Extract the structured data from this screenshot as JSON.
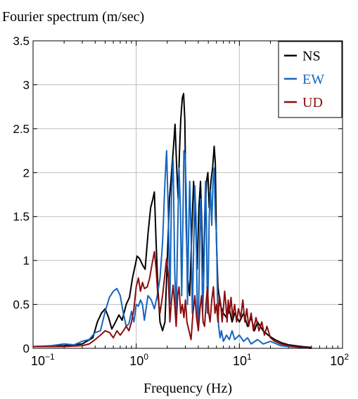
{
  "chart_data": {
    "type": "line",
    "ylabel": "Fourier spectrum (m/sec)",
    "xlabel": "Frequency (Hz)",
    "x_scale": "log",
    "xlim": [
      0.1,
      100
    ],
    "ylim": [
      0,
      3.5
    ],
    "grid": true,
    "legend_position": "top-right",
    "x_ticks": [
      {
        "value": 0.1,
        "base": "10",
        "exp": "−1"
      },
      {
        "value": 1,
        "base": "10",
        "exp": "0"
      },
      {
        "value": 10,
        "base": "10",
        "exp": "1"
      },
      {
        "value": 100,
        "base": "10",
        "exp": "2"
      }
    ],
    "y_ticks": [
      {
        "value": 0,
        "label": "0"
      },
      {
        "value": 0.5,
        "label": "0.5"
      },
      {
        "value": 1,
        "label": "1"
      },
      {
        "value": 1.5,
        "label": "1.5"
      },
      {
        "value": 2,
        "label": "2"
      },
      {
        "value": 2.5,
        "label": "2.5"
      },
      {
        "value": 3,
        "label": "3"
      },
      {
        "value": 3.5,
        "label": "3.5"
      }
    ],
    "series": [
      {
        "name": "NS",
        "color": "#000000",
        "points": [
          [
            0.1,
            0.02
          ],
          [
            0.2,
            0.03
          ],
          [
            0.3,
            0.05
          ],
          [
            0.38,
            0.12
          ],
          [
            0.42,
            0.3
          ],
          [
            0.46,
            0.4
          ],
          [
            0.5,
            0.45
          ],
          [
            0.54,
            0.35
          ],
          [
            0.58,
            0.22
          ],
          [
            0.63,
            0.3
          ],
          [
            0.68,
            0.38
          ],
          [
            0.73,
            0.32
          ],
          [
            0.8,
            0.5
          ],
          [
            0.86,
            0.58
          ],
          [
            0.92,
            0.8
          ],
          [
            0.98,
            0.95
          ],
          [
            1.02,
            1.05
          ],
          [
            1.08,
            1.02
          ],
          [
            1.15,
            0.95
          ],
          [
            1.22,
            0.9
          ],
          [
            1.3,
            1.3
          ],
          [
            1.38,
            1.6
          ],
          [
            1.45,
            1.7
          ],
          [
            1.5,
            1.78
          ],
          [
            1.56,
            1.2
          ],
          [
            1.62,
            0.7
          ],
          [
            1.7,
            0.3
          ],
          [
            1.8,
            0.2
          ],
          [
            1.9,
            0.3
          ],
          [
            2.0,
            1.0
          ],
          [
            2.1,
            1.7
          ],
          [
            2.2,
            2.0
          ],
          [
            2.3,
            2.3
          ],
          [
            2.38,
            2.55
          ],
          [
            2.46,
            2.1
          ],
          [
            2.55,
            1.7
          ],
          [
            2.62,
            2.2
          ],
          [
            2.7,
            2.6
          ],
          [
            2.8,
            2.85
          ],
          [
            2.88,
            2.9
          ],
          [
            2.96,
            2.6
          ],
          [
            3.05,
            1.4
          ],
          [
            3.15,
            0.8
          ],
          [
            3.3,
            0.6
          ],
          [
            3.45,
            1.3
          ],
          [
            3.6,
            1.9
          ],
          [
            3.75,
            1.5
          ],
          [
            3.9,
            0.9
          ],
          [
            4.05,
            1.6
          ],
          [
            4.2,
            1.9
          ],
          [
            4.35,
            1.3
          ],
          [
            4.5,
            0.8
          ],
          [
            4.65,
            1.5
          ],
          [
            4.8,
            1.9
          ],
          [
            4.95,
            2.0
          ],
          [
            5.1,
            1.6
          ],
          [
            5.3,
            1.9
          ],
          [
            5.5,
            2.05
          ],
          [
            5.7,
            2.3
          ],
          [
            5.85,
            2.1
          ],
          [
            6.0,
            1.2
          ],
          [
            6.2,
            0.7
          ],
          [
            6.5,
            0.5
          ],
          [
            7.0,
            0.4
          ],
          [
            7.5,
            0.35
          ],
          [
            8.0,
            0.45
          ],
          [
            8.5,
            0.3
          ],
          [
            9.0,
            0.4
          ],
          [
            10,
            0.3
          ],
          [
            11,
            0.4
          ],
          [
            12,
            0.25
          ],
          [
            13,
            0.35
          ],
          [
            14,
            0.2
          ],
          [
            15,
            0.3
          ],
          [
            17,
            0.2
          ],
          [
            19,
            0.15
          ],
          [
            22,
            0.1
          ],
          [
            26,
            0.06
          ],
          [
            30,
            0.04
          ],
          [
            40,
            0.02
          ],
          [
            50,
            0.01
          ]
        ]
      },
      {
        "name": "EW",
        "color": "#1566c0",
        "points": [
          [
            0.1,
            0.02
          ],
          [
            0.15,
            0.03
          ],
          [
            0.2,
            0.05
          ],
          [
            0.25,
            0.04
          ],
          [
            0.3,
            0.08
          ],
          [
            0.35,
            0.1
          ],
          [
            0.4,
            0.18
          ],
          [
            0.45,
            0.2
          ],
          [
            0.5,
            0.42
          ],
          [
            0.55,
            0.58
          ],
          [
            0.6,
            0.65
          ],
          [
            0.65,
            0.68
          ],
          [
            0.7,
            0.6
          ],
          [
            0.75,
            0.4
          ],
          [
            0.8,
            0.25
          ],
          [
            0.85,
            0.28
          ],
          [
            0.9,
            0.42
          ],
          [
            0.95,
            0.3
          ],
          [
            1.0,
            0.5
          ],
          [
            1.05,
            0.48
          ],
          [
            1.1,
            0.55
          ],
          [
            1.15,
            0.5
          ],
          [
            1.2,
            0.32
          ],
          [
            1.3,
            0.6
          ],
          [
            1.4,
            0.55
          ],
          [
            1.5,
            0.45
          ],
          [
            1.6,
            0.6
          ],
          [
            1.7,
            0.8
          ],
          [
            1.8,
            1.2
          ],
          [
            1.9,
            1.9
          ],
          [
            1.97,
            2.25
          ],
          [
            2.05,
            1.5
          ],
          [
            2.12,
            0.5
          ],
          [
            2.2,
            1.8
          ],
          [
            2.28,
            2.15
          ],
          [
            2.36,
            0.9
          ],
          [
            2.44,
            0.35
          ],
          [
            2.52,
            1.3
          ],
          [
            2.6,
            2.05
          ],
          [
            2.68,
            1.6
          ],
          [
            2.76,
            0.6
          ],
          [
            2.84,
            1.5
          ],
          [
            2.9,
            2.25
          ],
          [
            2.98,
            2.2
          ],
          [
            3.06,
            1.7
          ],
          [
            3.14,
            0.5
          ],
          [
            3.22,
            1.3
          ],
          [
            3.3,
            1.9
          ],
          [
            3.4,
            1.3
          ],
          [
            3.5,
            0.4
          ],
          [
            3.6,
            1.1
          ],
          [
            3.7,
            1.85
          ],
          [
            3.8,
            1.5
          ],
          [
            3.9,
            0.5
          ],
          [
            4.0,
            0.25
          ],
          [
            4.1,
            1.0
          ],
          [
            4.2,
            1.7
          ],
          [
            4.3,
            1.3
          ],
          [
            4.4,
            0.4
          ],
          [
            4.5,
            0.7
          ],
          [
            4.6,
            1.5
          ],
          [
            4.7,
            1.9
          ],
          [
            4.8,
            1.4
          ],
          [
            4.9,
            0.4
          ],
          [
            5.0,
            0.8
          ],
          [
            5.1,
            1.5
          ],
          [
            5.25,
            1.8
          ],
          [
            5.4,
            1.4
          ],
          [
            5.55,
            1.9
          ],
          [
            5.7,
            2.05
          ],
          [
            5.85,
            1.5
          ],
          [
            6.0,
            1.3
          ],
          [
            6.15,
            0.5
          ],
          [
            6.3,
            0.25
          ],
          [
            6.5,
            0.12
          ],
          [
            6.7,
            0.2
          ],
          [
            7.0,
            0.08
          ],
          [
            7.5,
            0.15
          ],
          [
            8.0,
            0.1
          ],
          [
            8.5,
            0.2
          ],
          [
            9.0,
            0.1
          ],
          [
            10,
            0.15
          ],
          [
            11,
            0.08
          ],
          [
            12,
            0.12
          ],
          [
            13,
            0.05
          ],
          [
            15,
            0.1
          ],
          [
            17,
            0.05
          ],
          [
            20,
            0.08
          ],
          [
            25,
            0.03
          ],
          [
            30,
            0.02
          ],
          [
            40,
            0.01
          ],
          [
            50,
            0.0
          ]
        ]
      },
      {
        "name": "UD",
        "color": "#8b0e0e",
        "points": [
          [
            0.1,
            0.02
          ],
          [
            0.2,
            0.02
          ],
          [
            0.3,
            0.03
          ],
          [
            0.35,
            0.05
          ],
          [
            0.4,
            0.1
          ],
          [
            0.45,
            0.15
          ],
          [
            0.5,
            0.2
          ],
          [
            0.55,
            0.18
          ],
          [
            0.6,
            0.12
          ],
          [
            0.65,
            0.2
          ],
          [
            0.7,
            0.15
          ],
          [
            0.75,
            0.2
          ],
          [
            0.8,
            0.25
          ],
          [
            0.85,
            0.2
          ],
          [
            0.9,
            0.3
          ],
          [
            0.95,
            0.45
          ],
          [
            1.0,
            0.7
          ],
          [
            1.05,
            0.8
          ],
          [
            1.1,
            0.65
          ],
          [
            1.15,
            0.75
          ],
          [
            1.2,
            0.68
          ],
          [
            1.28,
            0.7
          ],
          [
            1.35,
            0.8
          ],
          [
            1.42,
            0.95
          ],
          [
            1.5,
            1.1
          ],
          [
            1.56,
            0.9
          ],
          [
            1.62,
            0.6
          ],
          [
            1.7,
            0.4
          ],
          [
            1.8,
            0.6
          ],
          [
            1.9,
            0.85
          ],
          [
            1.97,
            1.02
          ],
          [
            2.05,
            0.8
          ],
          [
            2.12,
            0.3
          ],
          [
            2.2,
            0.55
          ],
          [
            2.28,
            0.72
          ],
          [
            2.36,
            0.5
          ],
          [
            2.44,
            0.25
          ],
          [
            2.52,
            0.6
          ],
          [
            2.6,
            0.7
          ],
          [
            2.7,
            0.4
          ],
          [
            2.8,
            0.5
          ],
          [
            2.9,
            0.35
          ],
          [
            3.0,
            0.55
          ],
          [
            3.1,
            0.3
          ],
          [
            3.25,
            0.2
          ],
          [
            3.4,
            0.1
          ],
          [
            3.55,
            0.4
          ],
          [
            3.7,
            0.6
          ],
          [
            3.85,
            0.35
          ],
          [
            4.0,
            0.2
          ],
          [
            4.15,
            0.45
          ],
          [
            4.3,
            0.6
          ],
          [
            4.45,
            0.3
          ],
          [
            4.6,
            0.25
          ],
          [
            4.75,
            0.5
          ],
          [
            4.9,
            0.7
          ],
          [
            5.05,
            0.4
          ],
          [
            5.2,
            0.3
          ],
          [
            5.4,
            0.55
          ],
          [
            5.6,
            0.7
          ],
          [
            5.8,
            0.4
          ],
          [
            6.0,
            0.5
          ],
          [
            6.2,
            0.3
          ],
          [
            6.4,
            0.6
          ],
          [
            6.6,
            0.5
          ],
          [
            6.8,
            0.3
          ],
          [
            7.0,
            0.45
          ],
          [
            7.2,
            0.65
          ],
          [
            7.4,
            0.5
          ],
          [
            7.6,
            0.3
          ],
          [
            7.8,
            0.55
          ],
          [
            8.0,
            0.4
          ],
          [
            8.3,
            0.58
          ],
          [
            8.6,
            0.35
          ],
          [
            9.0,
            0.5
          ],
          [
            9.4,
            0.3
          ],
          [
            9.8,
            0.45
          ],
          [
            10.3,
            0.35
          ],
          [
            10.8,
            0.55
          ],
          [
            11.3,
            0.3
          ],
          [
            11.8,
            0.45
          ],
          [
            12.3,
            0.25
          ],
          [
            13,
            0.4
          ],
          [
            13.7,
            0.2
          ],
          [
            14.5,
            0.35
          ],
          [
            15.5,
            0.2
          ],
          [
            16.5,
            0.3
          ],
          [
            17.5,
            0.15
          ],
          [
            18.5,
            0.25
          ],
          [
            20,
            0.12
          ],
          [
            22,
            0.08
          ],
          [
            25,
            0.05
          ],
          [
            30,
            0.03
          ],
          [
            40,
            0.01
          ],
          [
            50,
            0.0
          ]
        ]
      }
    ]
  }
}
